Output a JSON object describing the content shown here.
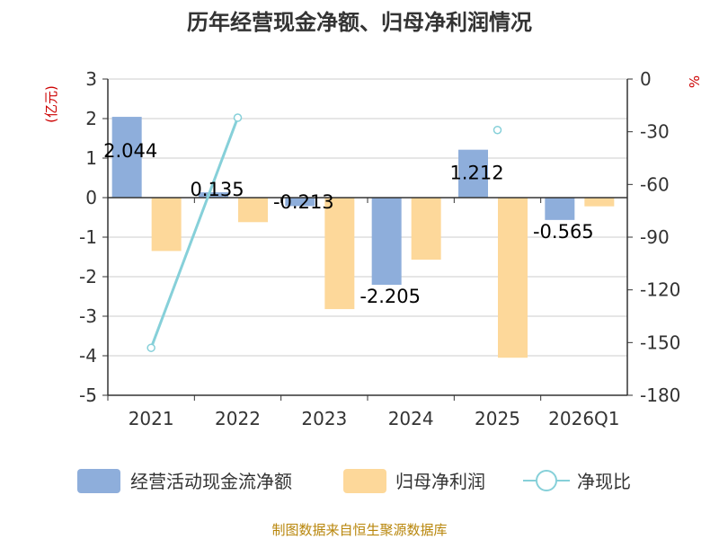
{
  "chart_data": {
    "type": "bar",
    "title": "历年经营现金净额、归母净利润情况",
    "categories": [
      "2021",
      "2022",
      "2023",
      "2024",
      "2025",
      "2026Q1"
    ],
    "left_axis": {
      "unit": "(亿元)",
      "min": -5,
      "max": 3,
      "ticks": [
        "3",
        "2",
        "1",
        "0",
        "-1",
        "-2",
        "-3",
        "-4",
        "-5"
      ]
    },
    "right_axis": {
      "unit": "%",
      "min": -180,
      "max": 0,
      "ticks": [
        "0",
        "-30",
        "-60",
        "-90",
        "-120",
        "-150",
        "-180"
      ]
    },
    "series": [
      {
        "name": "经营活动现金流净额",
        "type": "bar",
        "axis": "left",
        "color": "#8eaedb",
        "values": [
          2.044,
          0.135,
          -0.213,
          -2.205,
          1.212,
          -0.565
        ],
        "labels": [
          "2.044",
          "0.135",
          "-0.213",
          "-2.205",
          "1.212",
          "-0.565"
        ]
      },
      {
        "name": "归母净利润",
        "type": "bar",
        "axis": "left",
        "color": "#fdd89a",
        "values": [
          -1.35,
          -0.62,
          -2.82,
          -1.57,
          -4.05,
          -0.22
        ]
      },
      {
        "name": "净现比",
        "type": "line",
        "axis": "right",
        "color": "#86d0d9",
        "values": [
          -153,
          -22,
          null,
          null,
          -29,
          null
        ]
      }
    ],
    "legend_position": "bottom",
    "grid": true
  },
  "source": "制图数据来自恒生聚源数据库"
}
